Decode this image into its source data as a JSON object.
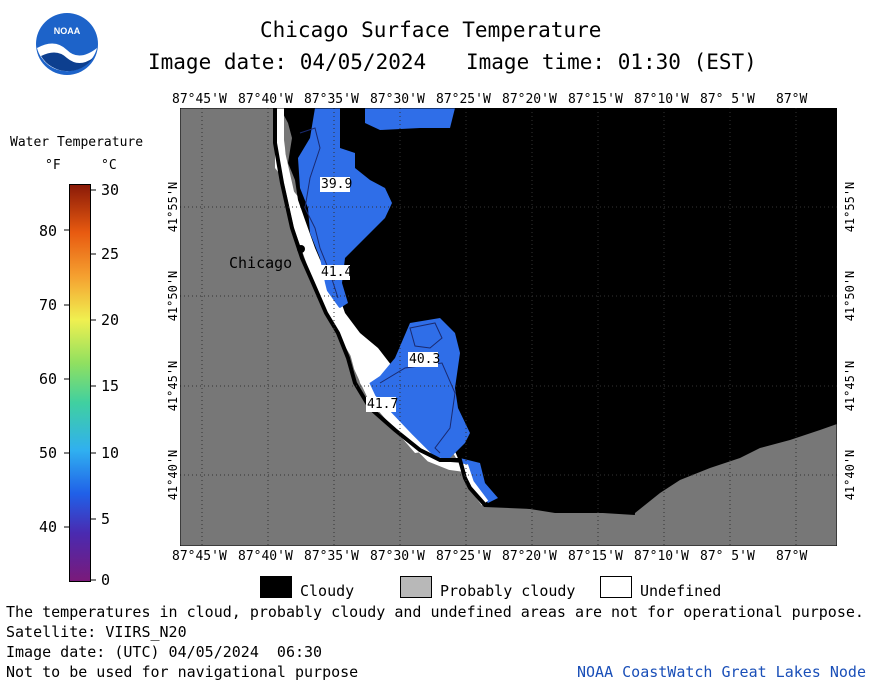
{
  "header": {
    "title": "Chicago Surface Temperature",
    "image_date": "Image date: 04/05/2024",
    "image_time": "Image time: 01:30 (EST)"
  },
  "logo_text": "NOAA",
  "colorbar": {
    "title": "Water Temperature",
    "unit_f": "°F",
    "unit_c": "°C",
    "f_ticks": [
      "80",
      "70",
      "60",
      "50",
      "40"
    ],
    "c_ticks": [
      "30",
      "25",
      "20",
      "15",
      "10",
      "5",
      "0"
    ]
  },
  "map": {
    "lon_ticks": [
      "87°45'W",
      "87°40'W",
      "87°35'W",
      "87°30'W",
      "87°25'W",
      "87°20'W",
      "87°15'W",
      "87°10'W",
      "87° 5'W",
      "87°W"
    ],
    "lat_ticks": [
      "41°55'N",
      "41°50'N",
      "41°45'N",
      "41°40'N"
    ],
    "city_label": "Chicago",
    "temp_labels": [
      "39.9",
      "41.4",
      "40.3",
      "41.7"
    ],
    "colors": {
      "land": "#777777",
      "cloud": "#000000",
      "undefined": "#ffffff",
      "water": "#2f6ee8"
    }
  },
  "legend": {
    "cloudy": "Cloudy",
    "probably_cloudy": "Probably cloudy",
    "undefined": "Undefined"
  },
  "footer": {
    "disclaimer": "The temperatures in cloud, probably cloudy and undefined areas are not for operational purpose.",
    "satellite": "Satellite: VIIRS_N20",
    "utc_date": "Image date: (UTC) 04/05/2024  06:30",
    "nav_warning": "Not to be used for navigational purpose",
    "credit": "NOAA CoastWatch Great Lakes Node"
  }
}
